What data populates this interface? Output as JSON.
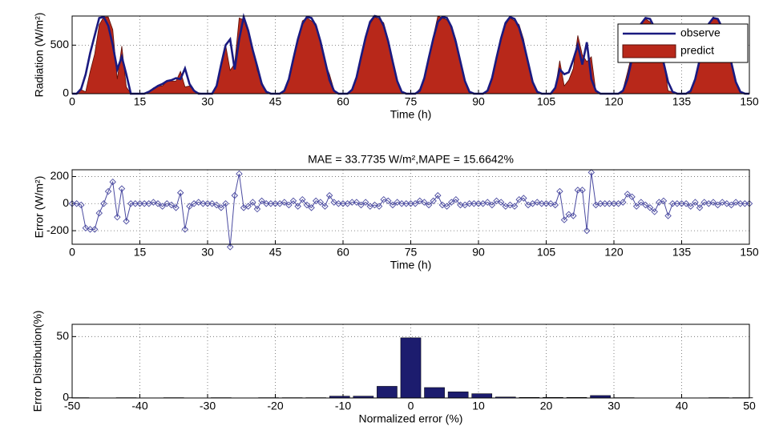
{
  "chart_data": [
    {
      "type": "line",
      "xlabel": "Time (h)",
      "ylabel": "Radiation (W/m²)",
      "x": [
        0,
        1,
        2,
        3,
        4,
        5,
        6,
        7,
        8,
        9,
        10,
        11,
        12,
        13,
        14,
        15,
        16,
        17,
        18,
        19,
        20,
        21,
        22,
        23,
        24,
        25,
        26,
        27,
        28,
        29,
        30,
        31,
        32,
        33,
        34,
        35,
        36,
        37,
        38,
        39,
        40,
        41,
        42,
        43,
        44,
        45,
        46,
        47,
        48,
        49,
        50,
        51,
        52,
        53,
        54,
        55,
        56,
        57,
        58,
        59,
        60,
        61,
        62,
        63,
        64,
        65,
        66,
        67,
        68,
        69,
        70,
        71,
        72,
        73,
        74,
        75,
        76,
        77,
        78,
        79,
        80,
        81,
        82,
        83,
        84,
        85,
        86,
        87,
        88,
        89,
        90,
        91,
        92,
        93,
        94,
        95,
        96,
        97,
        98,
        99,
        100,
        101,
        102,
        103,
        104,
        105,
        106,
        107,
        108,
        109,
        110,
        111,
        112,
        113,
        114,
        115,
        116,
        117,
        118,
        119,
        120,
        121,
        122,
        123,
        124,
        125,
        126,
        127,
        128,
        129,
        130,
        131,
        132,
        133,
        134,
        135,
        136,
        137,
        138,
        139,
        140,
        141,
        142,
        143,
        144,
        145,
        146,
        147,
        148,
        149,
        150
      ],
      "series": [
        {
          "name": "observe",
          "color": "#1a1a80",
          "fill": false,
          "values": [
            0,
            0,
            50,
            200,
            420,
            600,
            780,
            790,
            700,
            500,
            250,
            380,
            200,
            0,
            0,
            0,
            0,
            20,
            50,
            80,
            100,
            130,
            140,
            160,
            150,
            260,
            100,
            30,
            0,
            0,
            0,
            0,
            80,
            300,
            500,
            560,
            250,
            560,
            790,
            650,
            450,
            280,
            100,
            20,
            0,
            0,
            0,
            30,
            150,
            360,
            560,
            720,
            790,
            780,
            700,
            540,
            340,
            140,
            30,
            0,
            0,
            0,
            40,
            170,
            380,
            580,
            740,
            800,
            790,
            700,
            540,
            330,
            130,
            20,
            0,
            0,
            0,
            30,
            160,
            370,
            570,
            740,
            790,
            780,
            690,
            530,
            330,
            130,
            20,
            0,
            0,
            0,
            30,
            160,
            370,
            570,
            730,
            790,
            770,
            680,
            520,
            320,
            120,
            20,
            0,
            0,
            0,
            60,
            250,
            200,
            220,
            350,
            500,
            300,
            530,
            150,
            30,
            0,
            0,
            0,
            0,
            0,
            30,
            150,
            360,
            560,
            720,
            780,
            770,
            680,
            520,
            320,
            120,
            20,
            0,
            0,
            0,
            30,
            150,
            350,
            550,
            720,
            780,
            770,
            680,
            520,
            320,
            120,
            20,
            0,
            0
          ]
        },
        {
          "name": "predict",
          "color": "#b8281a",
          "fill": true,
          "values": [
            0,
            0,
            40,
            20,
            230,
            410,
            710,
            790,
            790,
            660,
            150,
            490,
            70,
            0,
            0,
            0,
            0,
            20,
            60,
            80,
            80,
            130,
            130,
            130,
            230,
            70,
            80,
            30,
            10,
            0,
            0,
            0,
            70,
            270,
            500,
            240,
            310,
            780,
            760,
            630,
            460,
            240,
            120,
            20,
            0,
            0,
            0,
            40,
            140,
            380,
            540,
            750,
            780,
            750,
            720,
            550,
            320,
            200,
            40,
            0,
            0,
            0,
            50,
            180,
            370,
            590,
            720,
            790,
            770,
            730,
            560,
            320,
            140,
            20,
            0,
            0,
            0,
            50,
            170,
            360,
            590,
            800,
            780,
            760,
            700,
            560,
            320,
            120,
            20,
            0,
            0,
            0,
            40,
            150,
            390,
            580,
            710,
            780,
            750,
            710,
            560,
            310,
            120,
            30,
            0,
            0,
            0,
            50,
            340,
            80,
            140,
            260,
            600,
            400,
            330,
            380,
            20,
            0,
            0,
            0,
            0,
            0,
            40,
            220,
            410,
            540,
            730,
            770,
            740,
            620,
            530,
            340,
            30,
            20,
            0,
            0,
            0,
            10,
            160,
            320,
            560,
            720,
            790,
            760,
            690,
            520,
            310,
            130,
            20,
            0,
            0
          ]
        }
      ],
      "xlim": [
        0,
        150
      ],
      "xticks": [
        0,
        15,
        30,
        45,
        60,
        75,
        90,
        105,
        120,
        135,
        150
      ],
      "ylim": [
        0,
        800
      ],
      "yticks": [
        0,
        500
      ],
      "grid": true,
      "legend": "upper right"
    },
    {
      "type": "line",
      "title": "MAE = 33.7735 W/m²,MAPE = 15.6642%",
      "xlabel": "Time (h)",
      "ylabel": "Error (W/m²)",
      "marker": "diamond",
      "x": [
        0,
        1,
        2,
        3,
        4,
        5,
        6,
        7,
        8,
        9,
        10,
        11,
        12,
        13,
        14,
        15,
        16,
        17,
        18,
        19,
        20,
        21,
        22,
        23,
        24,
        25,
        26,
        27,
        28,
        29,
        30,
        31,
        32,
        33,
        34,
        35,
        36,
        37,
        38,
        39,
        40,
        41,
        42,
        43,
        44,
        45,
        46,
        47,
        48,
        49,
        50,
        51,
        52,
        53,
        54,
        55,
        56,
        57,
        58,
        59,
        60,
        61,
        62,
        63,
        64,
        65,
        66,
        67,
        68,
        69,
        70,
        71,
        72,
        73,
        74,
        75,
        76,
        77,
        78,
        79,
        80,
        81,
        82,
        83,
        84,
        85,
        86,
        87,
        88,
        89,
        90,
        91,
        92,
        93,
        94,
        95,
        96,
        97,
        98,
        99,
        100,
        101,
        102,
        103,
        104,
        105,
        106,
        107,
        108,
        109,
        110,
        111,
        112,
        113,
        114,
        115,
        116,
        117,
        118,
        119,
        120,
        121,
        122,
        123,
        124,
        125,
        126,
        127,
        128,
        129,
        130,
        131,
        132,
        133,
        134,
        135,
        136,
        137,
        138,
        139,
        140,
        141,
        142,
        143,
        144,
        145,
        146,
        147,
        148,
        149,
        150
      ],
      "series": [
        {
          "color": "#4a4aa0",
          "values": [
            0,
            0,
            -10,
            -180,
            -190,
            -190,
            -70,
            0,
            90,
            160,
            -100,
            110,
            -130,
            0,
            0,
            0,
            0,
            0,
            10,
            0,
            -20,
            0,
            -10,
            -30,
            80,
            -190,
            -20,
            0,
            10,
            0,
            0,
            0,
            -10,
            -30,
            0,
            -320,
            60,
            220,
            -30,
            -20,
            10,
            -40,
            20,
            0,
            0,
            0,
            0,
            10,
            -10,
            20,
            -20,
            30,
            -10,
            -30,
            20,
            10,
            -20,
            60,
            10,
            0,
            0,
            0,
            10,
            10,
            -10,
            10,
            -20,
            -10,
            -20,
            30,
            20,
            -10,
            10,
            0,
            0,
            0,
            0,
            20,
            10,
            -10,
            20,
            60,
            -10,
            -20,
            10,
            30,
            -10,
            -10,
            0,
            0,
            0,
            0,
            10,
            -10,
            20,
            10,
            -20,
            -10,
            -20,
            30,
            40,
            -10,
            0,
            10,
            0,
            0,
            0,
            -10,
            90,
            -120,
            -80,
            -90,
            100,
            100,
            -200,
            230,
            -10,
            0,
            0,
            0,
            0,
            0,
            10,
            70,
            50,
            -20,
            10,
            -10,
            -30,
            -60,
            10,
            20,
            -90,
            0,
            0,
            0,
            0,
            -20,
            10,
            -30,
            10,
            0,
            10,
            -10,
            10,
            0,
            -10,
            10,
            0,
            0,
            0
          ]
        }
      ],
      "xlim": [
        0,
        150
      ],
      "xticks": [
        0,
        15,
        30,
        45,
        60,
        75,
        90,
        105,
        120,
        135,
        150
      ],
      "ylim": [
        -300,
        250
      ],
      "yticks": [
        -200,
        0,
        200
      ],
      "grid": true
    },
    {
      "type": "bar",
      "xlabel": "Normalized error (%)",
      "ylabel": "Error Distribution(%)",
      "color": "#1c1c6e",
      "x": [
        -49,
        -45.5,
        -42,
        -38.5,
        -35,
        -31.5,
        -28,
        -24.5,
        -21,
        -17.5,
        -14,
        -10.5,
        -7,
        -3.5,
        0,
        3.5,
        7,
        10.5,
        14,
        17.5,
        21,
        24.5,
        28,
        31.5,
        35,
        38.5,
        42,
        45.5,
        49
      ],
      "values": [
        0.3,
        0,
        0.3,
        0,
        0.3,
        0,
        0.3,
        0,
        0.3,
        0.3,
        0.3,
        1.5,
        1.5,
        9.5,
        49,
        8.5,
        5,
        3.5,
        0.8,
        0.5,
        0.5,
        0.5,
        2,
        0.3,
        0,
        0,
        0,
        0.3,
        0.3
      ],
      "xlim": [
        -50,
        50
      ],
      "xticks": [
        -50,
        -40,
        -30,
        -20,
        -10,
        0,
        10,
        20,
        30,
        40,
        50
      ],
      "ylim": [
        0,
        60
      ],
      "yticks": [
        0,
        50
      ],
      "grid": true
    }
  ]
}
